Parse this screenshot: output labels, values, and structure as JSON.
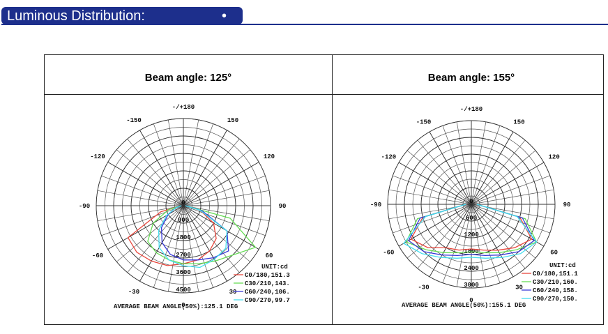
{
  "header": {
    "title": "Luminous Distribution:",
    "bullet": "•"
  },
  "chart_data": [
    {
      "type": "polar",
      "title": "Beam angle: 125°",
      "annotation": "UNIT:cd",
      "note": "AVERAGE BEAM ANGLE(50%):125.1 DEG",
      "x": [
        -90,
        -75,
        -60,
        -45,
        -30,
        -15,
        0,
        15,
        30,
        45,
        60,
        75,
        90
      ],
      "rlim": [
        0,
        4500
      ],
      "rticks": [
        0,
        900,
        1800,
        2700,
        3600,
        4500
      ],
      "angleticks": [
        -150,
        -120,
        -90,
        -60,
        -30,
        0,
        30,
        60,
        90,
        120,
        150,
        {
          "value": 180,
          "label": "-/+180"
        }
      ],
      "grid": true,
      "series": [
        {
          "name": "C0/180,151.3",
          "color": "#e8463c",
          "values": [
            100,
            1200,
            3300,
            3400,
            3300,
            3200,
            3000,
            2900,
            2700,
            2400,
            1800,
            900,
            100
          ]
        },
        {
          "name": "C30/210,143.",
          "color": "#66dd55",
          "values": [
            100,
            800,
            1800,
            2600,
            2800,
            2900,
            3000,
            3100,
            3300,
            3600,
            4300,
            2500,
            100
          ]
        },
        {
          "name": "C60/240,106.",
          "color": "#3a3ad8",
          "values": [
            100,
            400,
            900,
            1600,
            2200,
            2600,
            2800,
            2900,
            3100,
            3300,
            2600,
            1000,
            100
          ]
        },
        {
          "name": "C90/270,99.7",
          "color": "#44ddee",
          "values": [
            100,
            400,
            1000,
            1800,
            2500,
            2900,
            3100,
            3300,
            3200,
            3100,
            2600,
            900,
            100
          ]
        }
      ]
    },
    {
      "type": "polar",
      "title": "Beam angle: 155°",
      "annotation": "UNIT:cd",
      "note": "AVERAGE BEAM ANGLE(50%):155.1 DEG",
      "x": [
        -90,
        -75,
        -60,
        -45,
        -30,
        -15,
        0,
        15,
        30,
        45,
        60,
        75,
        90
      ],
      "rlim": [
        0,
        3000
      ],
      "rticks": [
        0,
        600,
        1200,
        1800,
        2400,
        3000
      ],
      "angleticks": [
        -150,
        -120,
        -90,
        -60,
        -30,
        0,
        30,
        60,
        90,
        120,
        150,
        {
          "value": 180,
          "label": "-/+180"
        }
      ],
      "grid": true,
      "series": [
        {
          "name": "C0/180,151.1",
          "color": "#e8463c",
          "values": [
            200,
            1800,
            2500,
            2200,
            1800,
            1700,
            1600,
            1700,
            1900,
            2200,
            2500,
            1800,
            200
          ]
        },
        {
          "name": "C30/210,160.",
          "color": "#66dd55",
          "values": [
            200,
            2000,
            2700,
            2300,
            2000,
            1800,
            1700,
            1800,
            2000,
            2300,
            2700,
            2000,
            200
          ]
        },
        {
          "name": "C60/240,158.",
          "color": "#3a3ad8",
          "values": [
            200,
            1900,
            2600,
            2400,
            2100,
            1900,
            1800,
            1900,
            2100,
            2400,
            2600,
            1900,
            200
          ]
        },
        {
          "name": "C90/270,150.",
          "color": "#44ddee",
          "values": [
            200,
            1700,
            2800,
            2500,
            2200,
            2000,
            1900,
            2000,
            2200,
            2500,
            2700,
            1700,
            200
          ]
        }
      ]
    }
  ]
}
